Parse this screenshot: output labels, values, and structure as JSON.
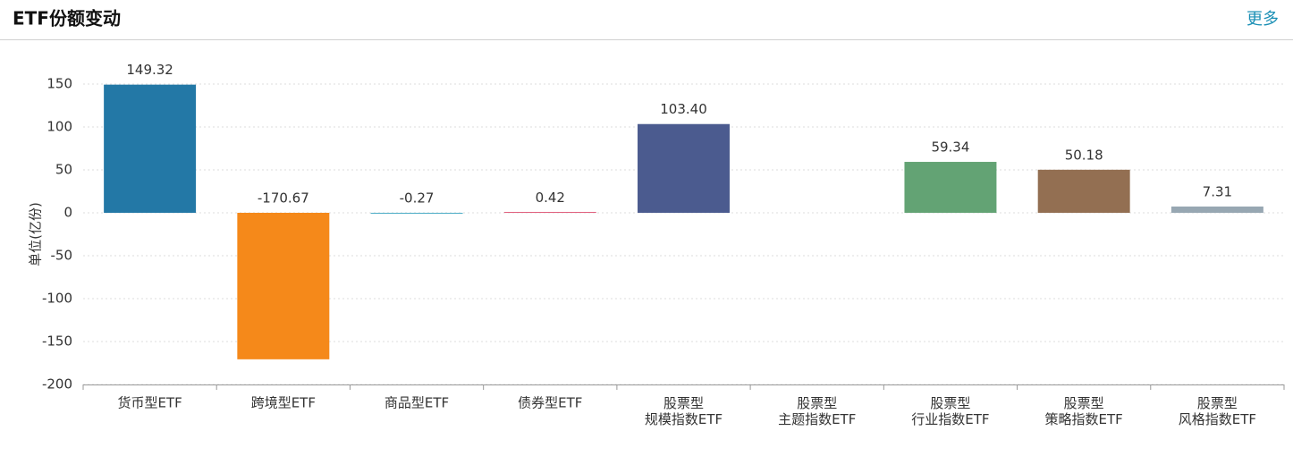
{
  "header": {
    "title": "ETF份额变动",
    "more": "更多"
  },
  "chart_data": {
    "type": "bar",
    "y_label": "单位(亿份)",
    "categories": [
      "货币型ETF",
      "跨境型ETF",
      "商品型ETF",
      "债券型ETF",
      "股票型\n规模指数ETF",
      "股票型\n主题指数ETF",
      "股票型\n行业指数ETF",
      "股票型\n策略指数ETF",
      "股票型\n风格指数ETF"
    ],
    "values": [
      149.32,
      -170.67,
      -0.27,
      0.42,
      103.4,
      null,
      59.34,
      50.18,
      7.31
    ],
    "value_labels": [
      "149.32",
      "-170.67",
      "-0.27",
      "0.42",
      "103.40",
      null,
      "59.34",
      "50.18",
      "7.31"
    ],
    "colors": [
      "#2378a6",
      "#f5891a",
      "#4bacc6",
      "#e0607e",
      "#4b5b8f",
      "#999999",
      "#63a374",
      "#936f52",
      "#97a7b2"
    ],
    "ylim": [
      -200,
      150
    ],
    "yticks": [
      -200,
      -150,
      -100,
      -50,
      0,
      50,
      100,
      150
    ],
    "grid": true
  }
}
